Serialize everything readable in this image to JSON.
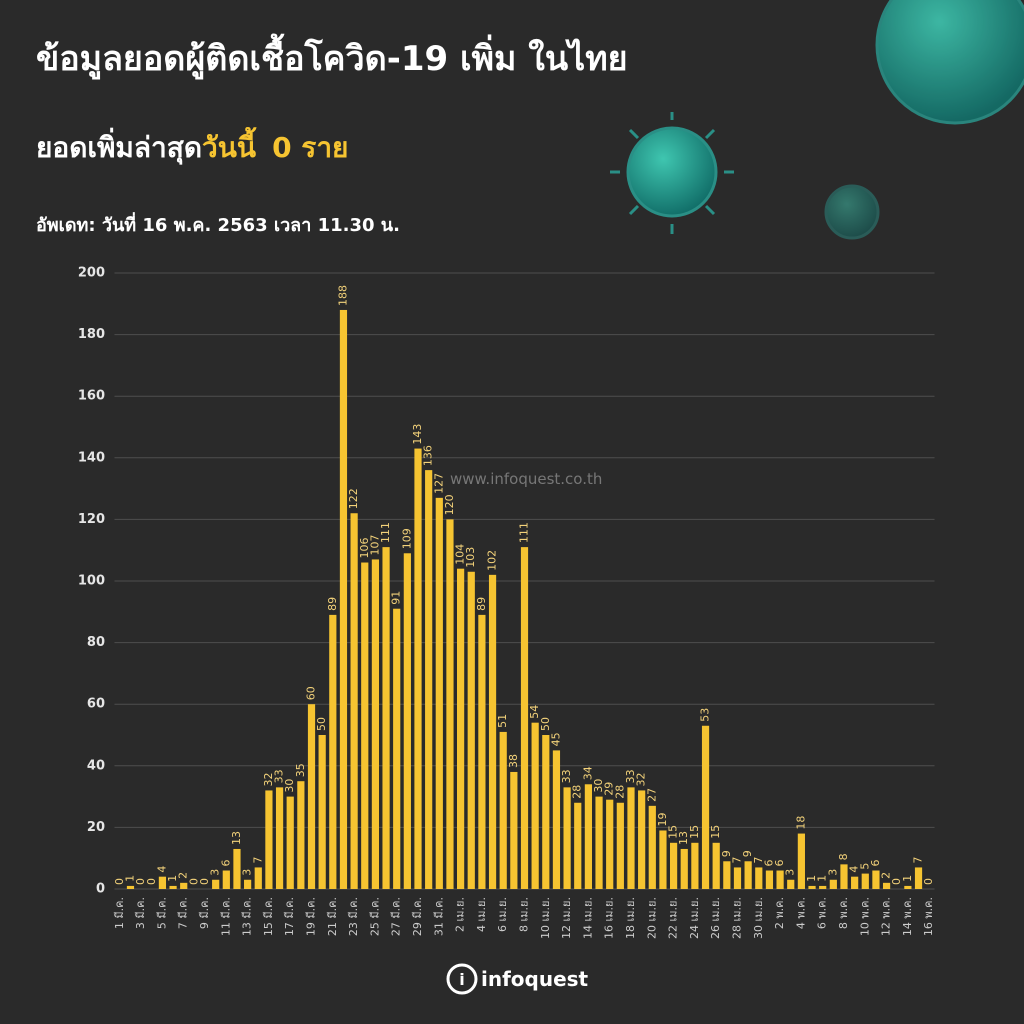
{
  "chart_data": {
    "type": "bar",
    "title": "ข้อมูลยอดผู้ติดเชื้อโควิด-19 เพิ่ม ในไทย",
    "subtitle": {
      "text": "ยอดเพิ่มล่าสุด",
      "highlight": "วันนี้",
      "count": "0 ราย"
    },
    "update": "อัพเดท: วันที่  16 พ.ค. 2563 เวลา 11.30 น.",
    "watermark": "www.infoquest.co.th",
    "logo": "infoquest",
    "color": "#f6c431",
    "grid": true,
    "ylim": [
      0,
      200
    ],
    "yticks": [
      0,
      20,
      40,
      60,
      80,
      100,
      120,
      140,
      160,
      180,
      200
    ],
    "categories": [
      "1 มี.ค.",
      null,
      "3 มี.ค.",
      null,
      "5 มี.ค.",
      null,
      "7 มี.ค.",
      null,
      "9 มี.ค.",
      null,
      "11 มี.ค.",
      null,
      "13 มี.ค.",
      null,
      "15 มี.ค.",
      null,
      "17 มี.ค.",
      null,
      "19 มี.ค.",
      null,
      "21 มี.ค.",
      null,
      "23 มี.ค.",
      null,
      "25 มี.ค.",
      null,
      "27 มี.ค.",
      null,
      "29 มี.ค.",
      null,
      "31 มี.ค.",
      null,
      "2 เม.ย.",
      null,
      "4 เม.ย.",
      null,
      "6 เม.ย.",
      null,
      "8 เม.ย.",
      null,
      "10 เม.ย.",
      null,
      "12 เม.ย.",
      null,
      "14 เม.ย.",
      null,
      "16 เม.ย.",
      null,
      "18 เม.ย.",
      null,
      "20 เม.ย.",
      null,
      "22 เม.ย.",
      null,
      "24 เม.ย.",
      null,
      "26 เม.ย.",
      null,
      "28 เม.ย.",
      null,
      "30 เม.ย.",
      null,
      "2 พ.ค.",
      null,
      "4 พ.ค.",
      null,
      "6 พ.ค.",
      null,
      "8 พ.ค.",
      null,
      "10 พ.ค.",
      null,
      "12 พ.ค.",
      null,
      "14 พ.ค.",
      null,
      "16 พ.ค."
    ],
    "values": [
      0,
      1,
      0,
      0,
      4,
      1,
      2,
      0,
      0,
      3,
      6,
      13,
      3,
      7,
      32,
      33,
      30,
      35,
      60,
      50,
      89,
      188,
      122,
      106,
      107,
      111,
      91,
      109,
      143,
      136,
      127,
      120,
      104,
      103,
      89,
      102,
      51,
      38,
      111,
      54,
      50,
      45,
      33,
      28,
      34,
      30,
      29,
      28,
      33,
      32,
      27,
      19,
      15,
      13,
      15,
      53,
      15,
      9,
      7,
      9,
      7,
      6,
      6,
      3,
      18,
      1,
      1,
      3,
      8,
      4,
      5,
      6,
      2,
      0,
      1,
      7,
      0
    ]
  }
}
